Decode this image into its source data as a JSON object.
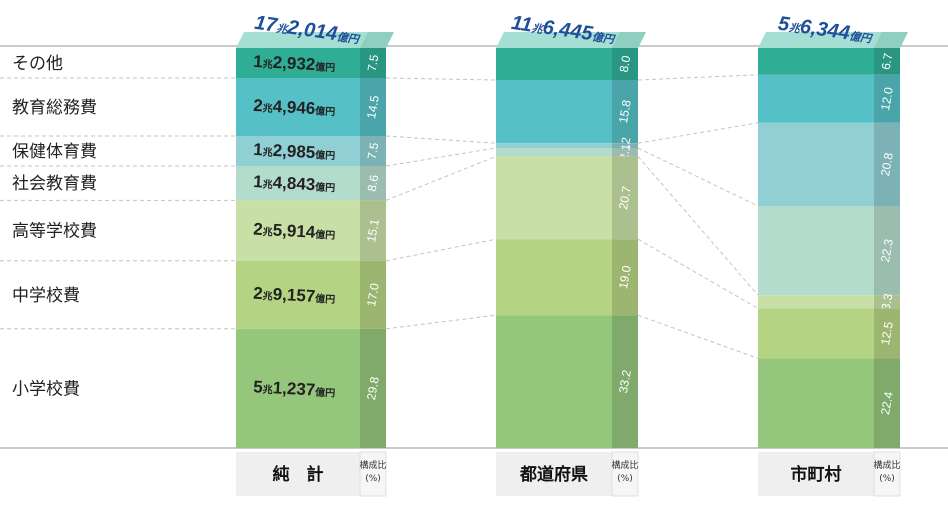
{
  "chart_data": {
    "type": "bar",
    "stacked": true,
    "categories": [
      "その他",
      "教育総務費",
      "保健体育費",
      "社会教育費",
      "高等学校費",
      "中学校費",
      "小学校費"
    ],
    "colors": [
      "#2fae95",
      "#55c0c6",
      "#90cfd4",
      "#b4dccd",
      "#c8dfa6",
      "#b5d483",
      "#94c67c"
    ],
    "ratio_header": [
      "構成比",
      "(%)"
    ],
    "bars": [
      {
        "name": "純　計",
        "total_label": {
          "major": "17",
          "unit1": "兆",
          "minor": "2,014",
          "unit2": "億円"
        },
        "percent": [
          7.5,
          14.5,
          7.5,
          8.6,
          15.1,
          17.0,
          29.8
        ],
        "percent_labels": [
          "7.5",
          "14.5",
          "7.5",
          "8.6",
          "15.1",
          "17.0",
          "29.8"
        ],
        "amounts": [
          {
            "major": "1",
            "unit1": "兆",
            "minor": "2,932",
            "unit2": "億円"
          },
          {
            "major": "2",
            "unit1": "兆",
            "minor": "4,946",
            "unit2": "億円"
          },
          {
            "major": "1",
            "unit1": "兆",
            "minor": "2,985",
            "unit2": "億円"
          },
          {
            "major": "1",
            "unit1": "兆",
            "minor": "4,843",
            "unit2": "億円"
          },
          {
            "major": "2",
            "unit1": "兆",
            "minor": "5,914",
            "unit2": "億円"
          },
          {
            "major": "2",
            "unit1": "兆",
            "minor": "9,157",
            "unit2": "億円"
          },
          {
            "major": "5",
            "unit1": "兆",
            "minor": "1,237",
            "unit2": "億円"
          }
        ]
      },
      {
        "name": "都道府県",
        "total_label": {
          "major": "11",
          "unit1": "兆",
          "minor": "6,445",
          "unit2": "億円"
        },
        "percent": [
          8.0,
          15.8,
          1.2,
          2.1,
          20.7,
          19.0,
          33.2
        ],
        "percent_labels": [
          "8.0",
          "15.8",
          "1.2",
          "2.1",
          "20.7",
          "19.0",
          "33.2"
        ]
      },
      {
        "name": "市町村",
        "total_label": {
          "major": "5",
          "unit1": "兆",
          "minor": "6,344",
          "unit2": "億円"
        },
        "percent": [
          6.7,
          12.0,
          20.8,
          22.3,
          3.3,
          12.5,
          22.4
        ],
        "percent_labels": [
          "6.7",
          "12.0",
          "20.8",
          "22.3",
          "3.3",
          "12.5",
          "22.4"
        ]
      }
    ]
  }
}
